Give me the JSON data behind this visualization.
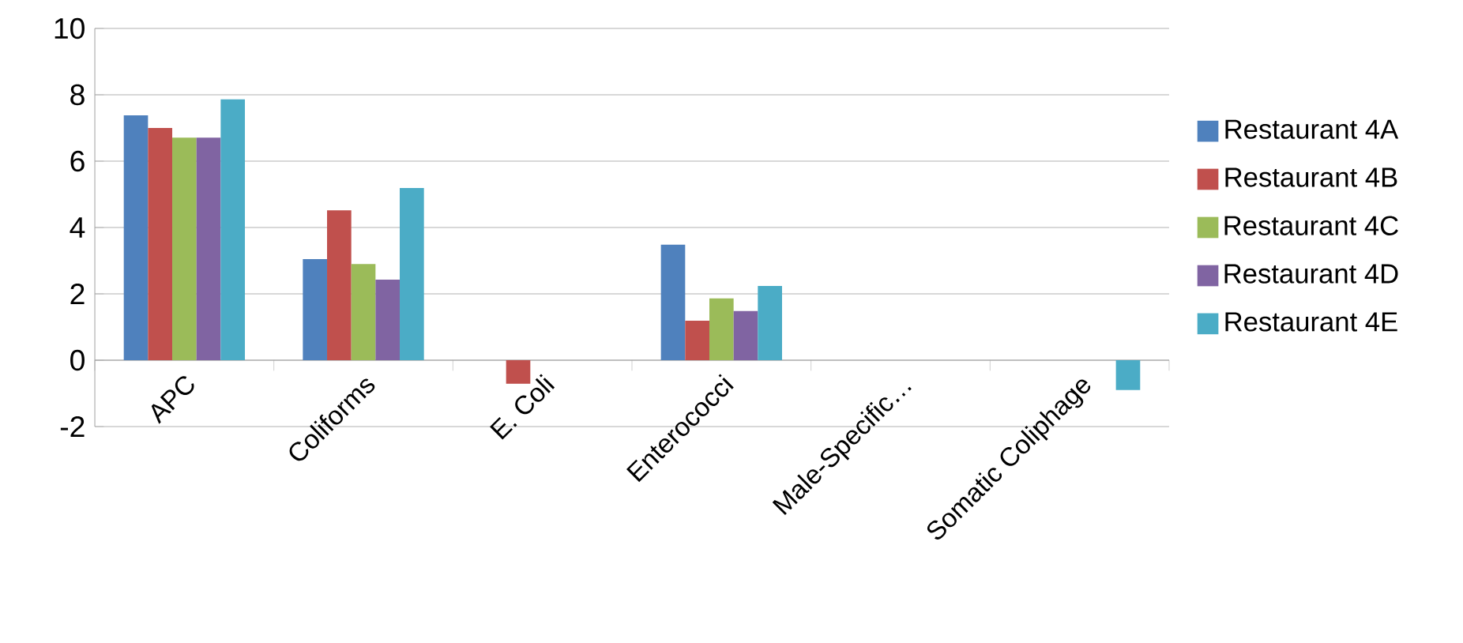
{
  "chart_data": {
    "type": "bar",
    "categories": [
      "APC",
      "Coliforms",
      "E. Coli",
      "Enterococci",
      "Male-Specific…",
      "Somatic Coliphage"
    ],
    "series": [
      {
        "name": "Restaurant 4A",
        "color": "#4f81bd",
        "values": [
          7.38,
          3.05,
          null,
          3.48,
          null,
          null
        ]
      },
      {
        "name": "Restaurant 4B",
        "color": "#c0504d",
        "values": [
          7.0,
          4.52,
          -0.71,
          1.19,
          null,
          null
        ]
      },
      {
        "name": "Restaurant 4C",
        "color": "#9bbb59",
        "values": [
          6.71,
          2.9,
          null,
          1.86,
          null,
          null
        ]
      },
      {
        "name": "Restaurant 4D",
        "color": "#8064a2",
        "values": [
          6.71,
          2.43,
          null,
          1.48,
          null,
          null
        ]
      },
      {
        "name": "Restaurant 4E",
        "color": "#4bacc6",
        "values": [
          7.86,
          5.19,
          null,
          2.24,
          null,
          -0.9
        ]
      }
    ],
    "ylim": [
      -2,
      10
    ],
    "yticks": [
      -2,
      0,
      2,
      4,
      6,
      8,
      10
    ],
    "grid": "y",
    "legend": "right"
  }
}
